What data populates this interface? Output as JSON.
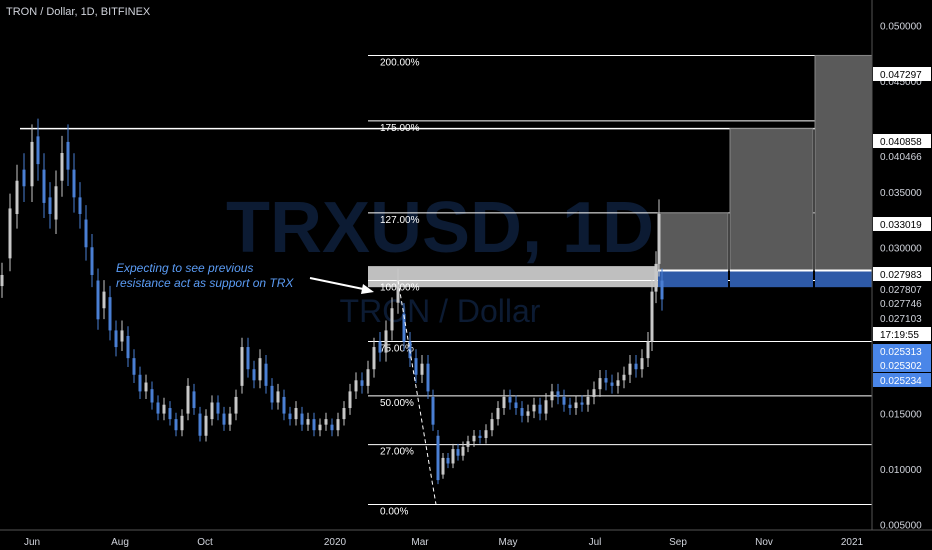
{
  "header": {
    "title": "TRON / Dollar, 1D, BITFINEX"
  },
  "watermark": {
    "symbol": "TRXUSD, 1D",
    "name": "TRON / Dollar"
  },
  "annotation": {
    "text_line1": "Expecting to see previous",
    "text_line2": "resistance act as support on TRX"
  },
  "colors": {
    "background": "#000000",
    "up_candle": "#c8c8c8",
    "down_candle": "#4a7fd4",
    "annotation_text": "#5b9cf5",
    "level_line": "#ffffff",
    "zone_gray": "#5a5a5a",
    "zone_blue": "#2e5aa8",
    "price_tag_blue": "#4a86e8"
  },
  "chart_data": {
    "type": "candlestick",
    "symbol": "TRXUSD",
    "timeframe": "1D",
    "exchange": "BITFINEX",
    "x_labels": [
      "Jun",
      "Aug",
      "Oct",
      "2020",
      "Mar",
      "May",
      "Jul",
      "Sep",
      "Nov",
      "2021"
    ],
    "y_ticks": [
      "0.050000",
      "0.045000",
      "0.035000",
      "0.030000",
      "0.015000",
      "0.010000",
      "0.005000"
    ],
    "ylim": [
      0.0045,
      0.0523
    ],
    "price_tags": [
      {
        "label": "0.047297",
        "value": 0.047297,
        "style": "white"
      },
      {
        "label": "0.040858",
        "value": 0.040858,
        "style": "white"
      },
      {
        "label": "0.040466",
        "value": 0.040466,
        "style": "plain"
      },
      {
        "label": "0.033019",
        "value": 0.033019,
        "style": "white"
      },
      {
        "label": "0.027983",
        "value": 0.027983,
        "style": "white"
      },
      {
        "label": "0.027807",
        "value": 0.027807,
        "style": "plain"
      },
      {
        "label": "0.027746",
        "value": 0.027746,
        "style": "plain"
      },
      {
        "label": "0.027103",
        "value": 0.027103,
        "style": "plain"
      },
      {
        "label": "17:19:55",
        "value": 0.0257,
        "style": "white"
      },
      {
        "label": "0.025313",
        "value": 0.025313,
        "style": "blue"
      },
      {
        "label": "0.025302",
        "value": 0.025302,
        "style": "blue"
      },
      {
        "label": "0.025234",
        "value": 0.025234,
        "style": "blue"
      }
    ],
    "fib_levels": [
      {
        "label": "200.00%",
        "value": 0.0473
      },
      {
        "label": "175.00%",
        "value": 0.0414
      },
      {
        "label": "127.00%",
        "value": 0.0331
      },
      {
        "label": "100.00%",
        "value": 0.027
      },
      {
        "label": "75.00%",
        "value": 0.0215
      },
      {
        "label": "50.00%",
        "value": 0.0166
      },
      {
        "label": "27.00%",
        "value": 0.0122
      },
      {
        "label": "0.00%",
        "value": 0.0068
      }
    ],
    "resistance_line": 0.0407,
    "projection_bars": [
      {
        "top": 0.0331,
        "base": 0.0279
      },
      {
        "top": 0.0407,
        "base": 0.0279
      },
      {
        "top": 0.0473,
        "base": 0.0279
      }
    ],
    "support_zone": {
      "top": 0.0283,
      "bottom": 0.0264
    },
    "candles": [
      {
        "t": 0,
        "o": 0.0265,
        "c": 0.0275
      },
      {
        "t": 8,
        "o": 0.029,
        "c": 0.0335
      },
      {
        "t": 15,
        "o": 0.033,
        "c": 0.036
      },
      {
        "t": 22,
        "o": 0.037,
        "c": 0.0355
      },
      {
        "t": 30,
        "o": 0.0355,
        "c": 0.0395
      },
      {
        "t": 36,
        "o": 0.04,
        "c": 0.0375
      },
      {
        "t": 42,
        "o": 0.037,
        "c": 0.034
      },
      {
        "t": 48,
        "o": 0.0345,
        "c": 0.033
      },
      {
        "t": 54,
        "o": 0.0325,
        "c": 0.0355
      },
      {
        "t": 60,
        "o": 0.036,
        "c": 0.0385
      },
      {
        "t": 66,
        "o": 0.0395,
        "c": 0.037
      },
      {
        "t": 72,
        "o": 0.037,
        "c": 0.0345
      },
      {
        "t": 78,
        "o": 0.0345,
        "c": 0.033
      },
      {
        "t": 84,
        "o": 0.0325,
        "c": 0.03
      },
      {
        "t": 90,
        "o": 0.03,
        "c": 0.0275
      },
      {
        "t": 96,
        "o": 0.027,
        "c": 0.0235
      },
      {
        "t": 102,
        "o": 0.0245,
        "c": 0.026
      },
      {
        "t": 108,
        "o": 0.0255,
        "c": 0.0225
      },
      {
        "t": 114,
        "o": 0.0225,
        "c": 0.021
      },
      {
        "t": 120,
        "o": 0.0215,
        "c": 0.0225
      },
      {
        "t": 126,
        "o": 0.022,
        "c": 0.02
      },
      {
        "t": 132,
        "o": 0.02,
        "c": 0.0185
      },
      {
        "t": 138,
        "o": 0.0185,
        "c": 0.017
      },
      {
        "t": 144,
        "o": 0.017,
        "c": 0.0178
      },
      {
        "t": 150,
        "o": 0.0172,
        "c": 0.016
      },
      {
        "t": 156,
        "o": 0.016,
        "c": 0.015
      },
      {
        "t": 162,
        "o": 0.015,
        "c": 0.0158
      },
      {
        "t": 168,
        "o": 0.0155,
        "c": 0.0145
      },
      {
        "t": 174,
        "o": 0.0145,
        "c": 0.0135
      },
      {
        "t": 180,
        "o": 0.0135,
        "c": 0.0148
      },
      {
        "t": 186,
        "o": 0.015,
        "c": 0.0175
      },
      {
        "t": 192,
        "o": 0.017,
        "c": 0.0155
      },
      {
        "t": 198,
        "o": 0.015,
        "c": 0.013
      },
      {
        "t": 204,
        "o": 0.013,
        "c": 0.0148
      },
      {
        "t": 210,
        "o": 0.0145,
        "c": 0.016
      },
      {
        "t": 216,
        "o": 0.016,
        "c": 0.015
      },
      {
        "t": 222,
        "o": 0.015,
        "c": 0.014
      },
      {
        "t": 228,
        "o": 0.014,
        "c": 0.015
      },
      {
        "t": 234,
        "o": 0.015,
        "c": 0.0165
      },
      {
        "t": 240,
        "o": 0.0175,
        "c": 0.021
      },
      {
        "t": 246,
        "o": 0.021,
        "c": 0.019
      },
      {
        "t": 252,
        "o": 0.019,
        "c": 0.018
      },
      {
        "t": 258,
        "o": 0.018,
        "c": 0.02
      },
      {
        "t": 264,
        "o": 0.0195,
        "c": 0.0175
      },
      {
        "t": 270,
        "o": 0.0175,
        "c": 0.016
      },
      {
        "t": 276,
        "o": 0.016,
        "c": 0.017
      },
      {
        "t": 282,
        "o": 0.0165,
        "c": 0.015
      },
      {
        "t": 288,
        "o": 0.015,
        "c": 0.0145
      },
      {
        "t": 294,
        "o": 0.0145,
        "c": 0.0155
      },
      {
        "t": 300,
        "o": 0.015,
        "c": 0.014
      },
      {
        "t": 306,
        "o": 0.014,
        "c": 0.0145
      },
      {
        "t": 312,
        "o": 0.0145,
        "c": 0.0135
      },
      {
        "t": 318,
        "o": 0.0135,
        "c": 0.014
      },
      {
        "t": 324,
        "o": 0.014,
        "c": 0.0145
      },
      {
        "t": 330,
        "o": 0.014,
        "c": 0.0135
      },
      {
        "t": 336,
        "o": 0.0135,
        "c": 0.0145
      },
      {
        "t": 342,
        "o": 0.0145,
        "c": 0.0155
      },
      {
        "t": 348,
        "o": 0.0155,
        "c": 0.017
      },
      {
        "t": 354,
        "o": 0.017,
        "c": 0.018
      },
      {
        "t": 360,
        "o": 0.018,
        "c": 0.0175
      },
      {
        "t": 366,
        "o": 0.0175,
        "c": 0.019
      },
      {
        "t": 372,
        "o": 0.019,
        "c": 0.021
      },
      {
        "t": 378,
        "o": 0.0215,
        "c": 0.0205
      },
      {
        "t": 384,
        "o": 0.0205,
        "c": 0.0225
      },
      {
        "t": 390,
        "o": 0.0225,
        "c": 0.0245
      },
      {
        "t": 396,
        "o": 0.025,
        "c": 0.027
      },
      {
        "t": 402,
        "o": 0.024,
        "c": 0.0215
      },
      {
        "t": 408,
        "o": 0.0215,
        "c": 0.02
      },
      {
        "t": 414,
        "o": 0.02,
        "c": 0.0185
      },
      {
        "t": 420,
        "o": 0.0185,
        "c": 0.0195
      },
      {
        "t": 426,
        "o": 0.0195,
        "c": 0.017
      },
      {
        "t": 431,
        "o": 0.0165,
        "c": 0.014
      },
      {
        "t": 436,
        "o": 0.013,
        "c": 0.009
      },
      {
        "t": 441,
        "o": 0.0095,
        "c": 0.011
      },
      {
        "t": 446,
        "o": 0.011,
        "c": 0.0105
      },
      {
        "t": 451,
        "o": 0.0105,
        "c": 0.0118
      },
      {
        "t": 456,
        "o": 0.0118,
        "c": 0.0112
      },
      {
        "t": 461,
        "o": 0.0112,
        "c": 0.012
      },
      {
        "t": 466,
        "o": 0.012,
        "c": 0.0125
      },
      {
        "t": 472,
        "o": 0.0125,
        "c": 0.013
      },
      {
        "t": 478,
        "o": 0.013,
        "c": 0.0128
      },
      {
        "t": 484,
        "o": 0.0128,
        "c": 0.0135
      },
      {
        "t": 490,
        "o": 0.0135,
        "c": 0.0145
      },
      {
        "t": 496,
        "o": 0.0145,
        "c": 0.0155
      },
      {
        "t": 502,
        "o": 0.0155,
        "c": 0.0165
      },
      {
        "t": 508,
        "o": 0.0165,
        "c": 0.016
      },
      {
        "t": 514,
        "o": 0.016,
        "c": 0.0155
      },
      {
        "t": 520,
        "o": 0.0155,
        "c": 0.0148
      },
      {
        "t": 526,
        "o": 0.0148,
        "c": 0.0152
      },
      {
        "t": 532,
        "o": 0.0152,
        "c": 0.0158
      },
      {
        "t": 538,
        "o": 0.0158,
        "c": 0.015
      },
      {
        "t": 544,
        "o": 0.015,
        "c": 0.0162
      },
      {
        "t": 550,
        "o": 0.0162,
        "c": 0.017
      },
      {
        "t": 556,
        "o": 0.017,
        "c": 0.0165
      },
      {
        "t": 562,
        "o": 0.0165,
        "c": 0.0158
      },
      {
        "t": 568,
        "o": 0.0158,
        "c": 0.0155
      },
      {
        "t": 574,
        "o": 0.0155,
        "c": 0.016
      },
      {
        "t": 580,
        "o": 0.016,
        "c": 0.0158
      },
      {
        "t": 586,
        "o": 0.0158,
        "c": 0.0165
      },
      {
        "t": 592,
        "o": 0.0165,
        "c": 0.0172
      },
      {
        "t": 598,
        "o": 0.0172,
        "c": 0.0182
      },
      {
        "t": 604,
        "o": 0.0182,
        "c": 0.0178
      },
      {
        "t": 610,
        "o": 0.0178,
        "c": 0.0175
      },
      {
        "t": 616,
        "o": 0.0175,
        "c": 0.018
      },
      {
        "t": 622,
        "o": 0.018,
        "c": 0.0185
      },
      {
        "t": 628,
        "o": 0.0185,
        "c": 0.0195
      },
      {
        "t": 634,
        "o": 0.0195,
        "c": 0.019
      },
      {
        "t": 640,
        "o": 0.019,
        "c": 0.02
      },
      {
        "t": 646,
        "o": 0.02,
        "c": 0.0215
      },
      {
        "t": 650,
        "o": 0.0215,
        "c": 0.026
      },
      {
        "t": 654,
        "o": 0.026,
        "c": 0.0285
      },
      {
        "t": 657,
        "o": 0.0285,
        "c": 0.033
      },
      {
        "t": 660,
        "o": 0.027,
        "c": 0.0253
      }
    ]
  }
}
